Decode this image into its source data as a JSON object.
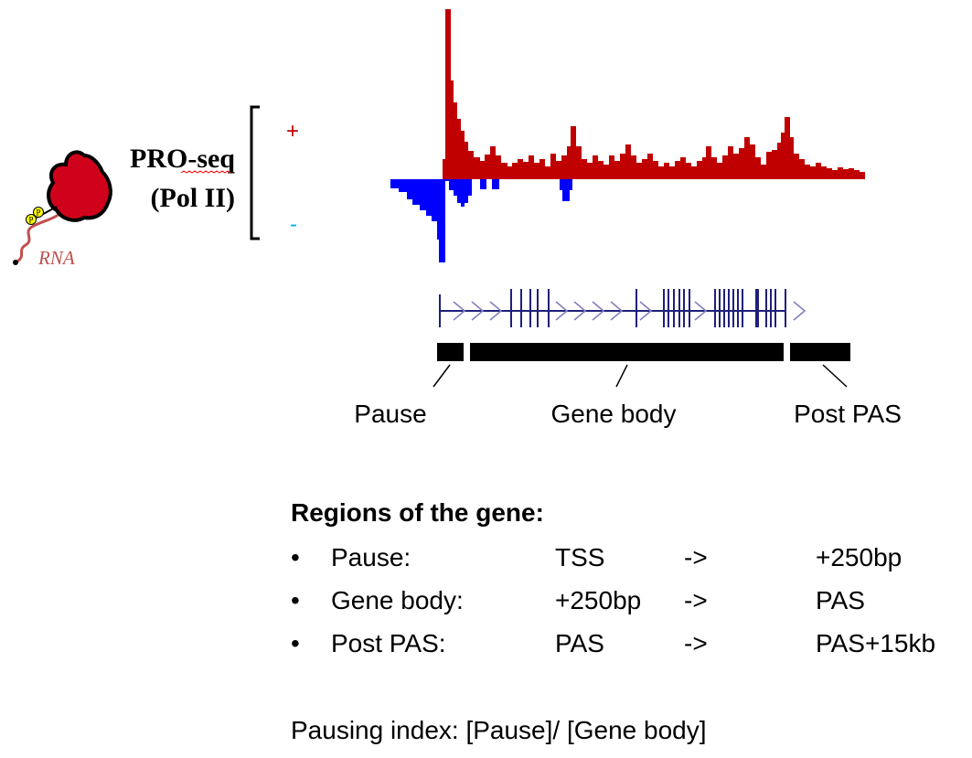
{
  "track": {
    "title_line1": "PRO-seq",
    "title_line2": "(Pol II)",
    "rna_label": "RNA",
    "phospho_label": "P",
    "plus_label": "+",
    "minus_label": "-",
    "colors": {
      "plus": "#c00000",
      "minus": "#0000ff",
      "plus_text": "#c00000",
      "minus_text": "#00b0f0",
      "gene_model": "#1f1f7a",
      "rna": "#c0504d"
    }
  },
  "gene_regions": {
    "pause_label": "Pause",
    "body_label": "Gene body",
    "post_label": "Post PAS"
  },
  "regions_of_gene": {
    "title": "Regions of the gene:",
    "rows": [
      {
        "bullet": "•",
        "name": "Pause:",
        "from": "TSS",
        "arrow": "->",
        "to": "+250bp"
      },
      {
        "bullet": "•",
        "name": "Gene body:",
        "from": "+250bp",
        "arrow": "->",
        "to": "PAS"
      },
      {
        "bullet": "•",
        "name": "Post PAS:",
        "from": "PAS",
        "arrow": "->",
        "to": "PAS+15kb"
      }
    ]
  },
  "pausing_index": "Pausing index: [Pause]/ [Gene body]"
}
